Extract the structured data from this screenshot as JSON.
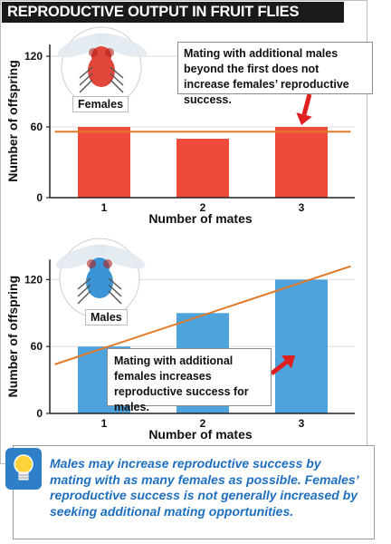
{
  "title": "REPRODUCTIVE OUTPUT IN FRUIT FLIES",
  "colors": {
    "female_bar": "#ef4b3a",
    "male_bar": "#4ea3dc",
    "trend_line": "#e07a28",
    "arrow": "#e02020",
    "takeaway_text": "#1f6fc0"
  },
  "chart_data": [
    {
      "type": "bar",
      "panel_label": "Females",
      "categories": [
        "1",
        "2",
        "3"
      ],
      "values": [
        60,
        50,
        60
      ],
      "xlabel": "Number of mates",
      "ylabel": "Number of offspring",
      "yticks": [
        "0",
        "60",
        "120"
      ],
      "ylim": [
        0,
        130
      ],
      "trend_line": {
        "from": [
          0.5,
          56
        ],
        "to": [
          3.5,
          56
        ]
      },
      "callout": "Mating with additional males beyond the first does not increase females’ reproductive success."
    },
    {
      "type": "bar",
      "panel_label": "Males",
      "categories": [
        "1",
        "2",
        "3"
      ],
      "values": [
        60,
        90,
        120
      ],
      "xlabel": "Number of mates",
      "ylabel": "Number of offspring",
      "yticks": [
        "0",
        "60",
        "120"
      ],
      "ylim": [
        0,
        138
      ],
      "trend_line": {
        "from": [
          0.5,
          44
        ],
        "to": [
          3.5,
          132
        ]
      },
      "callout": "Mating with additional females increases reproductive success for males."
    }
  ],
  "takeaway": "Males may increase reproductive success by mating with as many females as possible. Females’ reproductive success is not generally increased by seeking additional mating opportunities.",
  "icons": {
    "female": "red-fruit-fly-icon",
    "male": "blue-fruit-fly-icon",
    "tip": "lightbulb-icon"
  }
}
